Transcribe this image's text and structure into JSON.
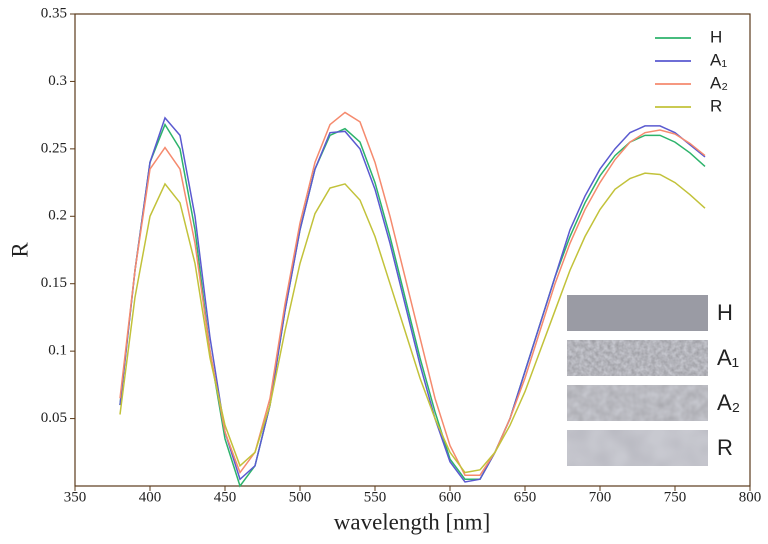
{
  "chart_data": {
    "type": "line",
    "xlabel": "wavelength [nm]",
    "ylabel": "R",
    "x": [
      380,
      390,
      400,
      410,
      420,
      430,
      440,
      450,
      460,
      470,
      480,
      490,
      500,
      510,
      520,
      530,
      540,
      550,
      560,
      570,
      580,
      590,
      600,
      610,
      620,
      630,
      640,
      650,
      660,
      670,
      680,
      690,
      700,
      710,
      720,
      730,
      740,
      750,
      760,
      770
    ],
    "series": [
      {
        "name": "H",
        "color": "#2db36b",
        "values": [
          0.06,
          0.16,
          0.24,
          0.268,
          0.25,
          0.19,
          0.1,
          0.035,
          0.0,
          0.015,
          0.06,
          0.13,
          0.19,
          0.235,
          0.26,
          0.265,
          0.255,
          0.225,
          0.185,
          0.14,
          0.095,
          0.055,
          0.02,
          0.005,
          0.005,
          0.025,
          0.05,
          0.085,
          0.12,
          0.155,
          0.185,
          0.21,
          0.23,
          0.245,
          0.255,
          0.26,
          0.26,
          0.255,
          0.247,
          0.237
        ]
      },
      {
        "name": "A₁",
        "color": "#5a5ad0",
        "values": [
          0.06,
          0.16,
          0.24,
          0.273,
          0.26,
          0.2,
          0.11,
          0.04,
          0.005,
          0.015,
          0.06,
          0.13,
          0.19,
          0.235,
          0.262,
          0.263,
          0.25,
          0.22,
          0.18,
          0.135,
          0.09,
          0.05,
          0.018,
          0.003,
          0.005,
          0.025,
          0.05,
          0.085,
          0.12,
          0.155,
          0.19,
          0.215,
          0.235,
          0.25,
          0.262,
          0.267,
          0.267,
          0.262,
          0.253,
          0.244
        ]
      },
      {
        "name": "A₂",
        "color": "#f58a6e",
        "values": [
          0.065,
          0.16,
          0.235,
          0.251,
          0.235,
          0.18,
          0.1,
          0.04,
          0.01,
          0.025,
          0.065,
          0.135,
          0.195,
          0.24,
          0.268,
          0.277,
          0.27,
          0.24,
          0.2,
          0.155,
          0.11,
          0.065,
          0.03,
          0.008,
          0.008,
          0.025,
          0.05,
          0.08,
          0.115,
          0.15,
          0.18,
          0.205,
          0.225,
          0.242,
          0.255,
          0.262,
          0.264,
          0.261,
          0.254,
          0.245
        ]
      },
      {
        "name": "R",
        "color": "#c2c23a",
        "values": [
          0.053,
          0.14,
          0.2,
          0.224,
          0.21,
          0.165,
          0.095,
          0.045,
          0.015,
          0.025,
          0.06,
          0.115,
          0.165,
          0.202,
          0.221,
          0.224,
          0.212,
          0.185,
          0.15,
          0.115,
          0.08,
          0.05,
          0.025,
          0.01,
          0.012,
          0.025,
          0.045,
          0.07,
          0.1,
          0.13,
          0.16,
          0.185,
          0.205,
          0.22,
          0.228,
          0.232,
          0.231,
          0.225,
          0.216,
          0.206
        ]
      }
    ],
    "xlim": [
      350,
      800
    ],
    "xticks": [
      350,
      400,
      450,
      500,
      550,
      600,
      650,
      700,
      750,
      800
    ],
    "ylim": [
      0,
      0.35
    ],
    "yticks": [
      0.05,
      0.1,
      0.15,
      0.2,
      0.25,
      0.3,
      0.35
    ],
    "legend": "upper right",
    "inset_labels": [
      "H",
      "A₁",
      "A₂",
      "R"
    ]
  }
}
